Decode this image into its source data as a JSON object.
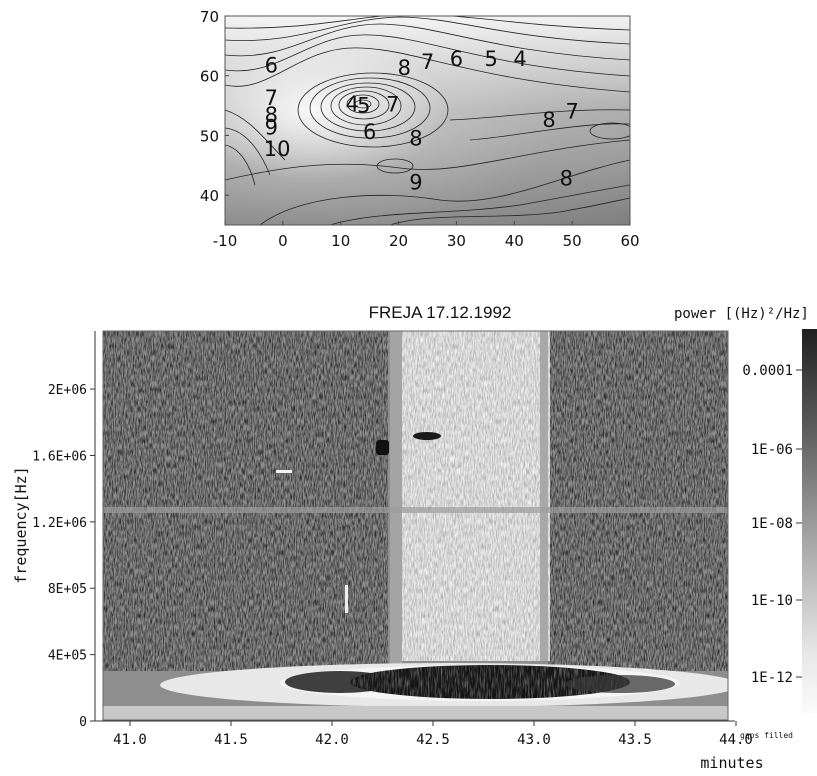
{
  "chart_data": [
    {
      "type": "contour",
      "title": "",
      "xlabel": "",
      "ylabel": "",
      "xlim": [
        -10,
        60
      ],
      "ylim": [
        35,
        70
      ],
      "x_ticks": [
        "-10",
        "0",
        "10",
        "20",
        "30",
        "40",
        "50",
        "60"
      ],
      "y_ticks": [
        "40",
        "50",
        "60",
        "70"
      ],
      "contour_labels": [
        {
          "text": "6",
          "x": -2,
          "y": 61.7
        },
        {
          "text": "7",
          "x": -2,
          "y": 56.3
        },
        {
          "text": "8",
          "x": -2,
          "y": 53.4
        },
        {
          "text": "9",
          "x": -2,
          "y": 51.3
        },
        {
          "text": "10",
          "x": -1,
          "y": 47.7
        },
        {
          "text": "4",
          "x": 12,
          "y": 55.3
        },
        {
          "text": "5",
          "x": 14,
          "y": 55
        },
        {
          "text": "7",
          "x": 19,
          "y": 55.2
        },
        {
          "text": "6",
          "x": 15,
          "y": 50.6
        },
        {
          "text": "8",
          "x": 21,
          "y": 61.3
        },
        {
          "text": "7",
          "x": 25,
          "y": 62.3
        },
        {
          "text": "6",
          "x": 30,
          "y": 62.8
        },
        {
          "text": "5",
          "x": 36,
          "y": 62.8
        },
        {
          "text": "4",
          "x": 41,
          "y": 62.8
        },
        {
          "text": "8",
          "x": 23,
          "y": 49.5
        },
        {
          "text": "8",
          "x": 46,
          "y": 52.6
        },
        {
          "text": "7",
          "x": 50,
          "y": 54
        },
        {
          "text": "9",
          "x": 23,
          "y": 42.1
        },
        {
          "text": "8",
          "x": 49,
          "y": 42.8
        }
      ]
    },
    {
      "type": "heatmap",
      "title": "FREJA 17.12.1992",
      "xlabel": "minutes",
      "ylabel": "frequency[Hz]",
      "xlim": [
        40.9,
        44.1
      ],
      "ylim": [
        0,
        2350000
      ],
      "x_ticks": [
        "41.0",
        "41.5",
        "42.0",
        "42.5",
        "43.0",
        "43.5",
        "44.0"
      ],
      "y_ticks": [
        "0",
        "4E+05",
        "8E+05",
        "1.2E+06",
        "1.6E+06",
        "2E+06"
      ],
      "colorbar": {
        "label": "power [(Hz)²/Hz]",
        "ticks": [
          "0.0001",
          "1E-06",
          "1E-08",
          "1E-10",
          "1E-12"
        ],
        "note": "gaps filled"
      }
    }
  ]
}
